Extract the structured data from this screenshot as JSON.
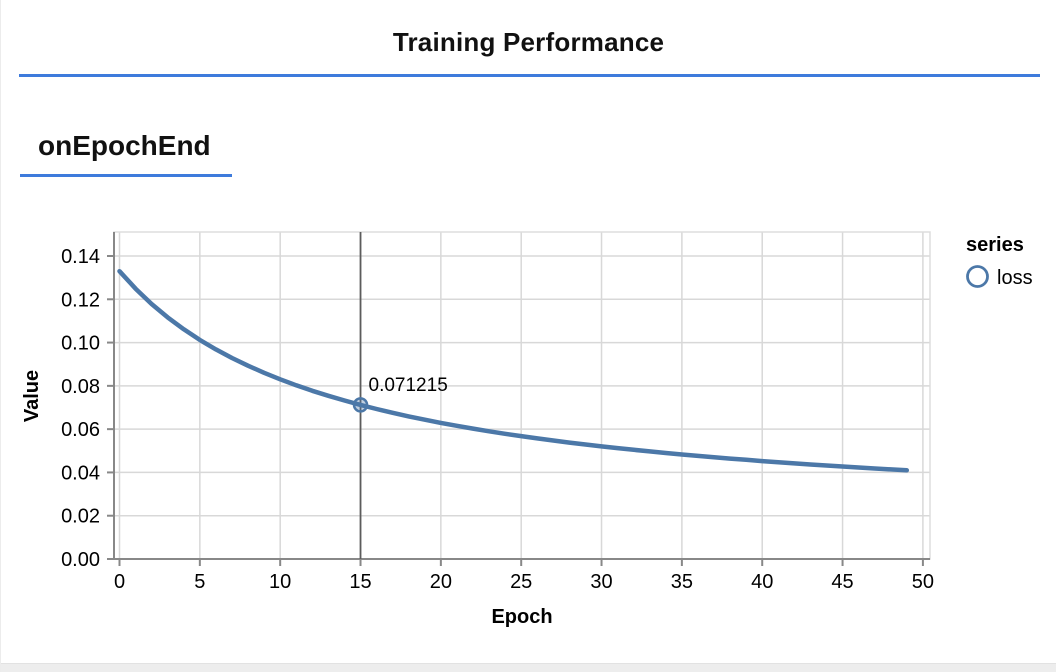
{
  "header": {
    "title": "Training Performance"
  },
  "section": {
    "label": "onEpochEnd"
  },
  "colors": {
    "accent_blue": "#3e7bdc",
    "series_blue": "#4c78a8",
    "grid": "#d8d8d8",
    "view_border": "#dddddd",
    "axis": "#888888",
    "crosshair": "#5c5c5c",
    "footer_bar": "#ededed"
  },
  "chart_data": {
    "type": "line",
    "xlabel": "Epoch",
    "ylabel": "Value",
    "legend_title": "series",
    "legend_position": "right",
    "grid": true,
    "xlim": [
      0,
      50
    ],
    "ylim": [
      0,
      0.15
    ],
    "x_ticks": [
      0,
      5,
      10,
      15,
      20,
      25,
      30,
      35,
      40,
      45,
      50
    ],
    "y_ticks": [
      0.0,
      0.02,
      0.04,
      0.06,
      0.08,
      0.1,
      0.12,
      0.14
    ],
    "series": [
      {
        "name": "loss",
        "marker": "open-circle",
        "x": [
          0,
          1,
          2,
          3,
          4,
          5,
          6,
          7,
          8,
          9,
          10,
          11,
          12,
          13,
          14,
          15,
          16,
          17,
          18,
          19,
          20,
          21,
          22,
          23,
          24,
          25,
          26,
          27,
          28,
          29,
          30,
          31,
          32,
          33,
          34,
          35,
          36,
          37,
          38,
          39,
          40,
          41,
          42,
          43,
          44,
          45,
          46,
          47,
          48,
          49
        ],
        "y": [
          0.13299,
          0.12489,
          0.117833,
          0.111632,
          0.106141,
          0.101244,
          0.09685,
          0.092886,
          0.089291,
          0.086016,
          0.08302,
          0.080269,
          0.077734,
          0.07539,
          0.073217,
          0.071215,
          0.069314,
          0.067554,
          0.065907,
          0.06436,
          0.062906,
          0.061537,
          0.060245,
          0.059023,
          0.057867,
          0.056771,
          0.05573,
          0.054741,
          0.0538,
          0.052903,
          0.052047,
          0.05123,
          0.050448,
          0.049701,
          0.048984,
          0.048297,
          0.047639,
          0.047006,
          0.046398,
          0.045813,
          0.045249,
          0.044707,
          0.044184,
          0.04368,
          0.043193,
          0.042723,
          0.042268,
          0.041829,
          0.041404,
          0.040992
        ]
      }
    ],
    "highlight": {
      "x": 15,
      "y": 0.071215,
      "label": "0.071215"
    }
  }
}
